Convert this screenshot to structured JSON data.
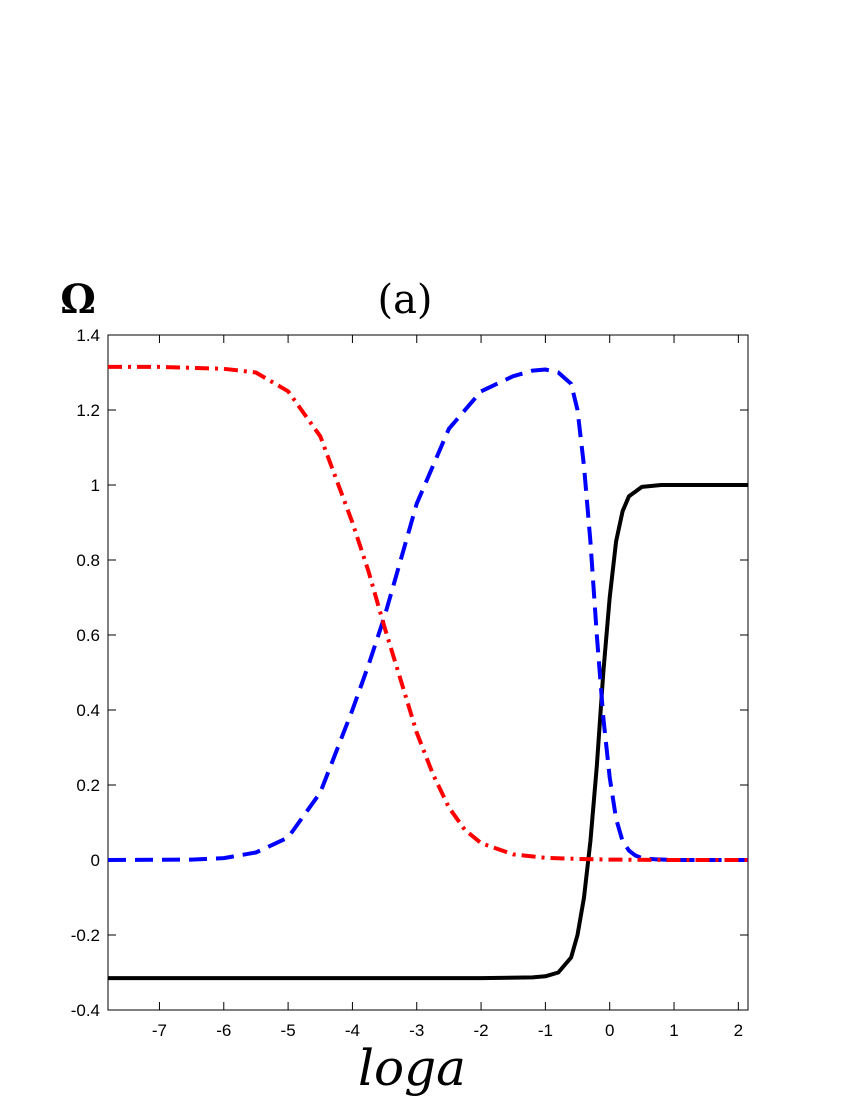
{
  "chart_data": {
    "type": "line",
    "title": "(a)",
    "xlabel": "loga",
    "ylabel": "Ω",
    "xlim": [
      -7.8,
      2.15
    ],
    "ylim": [
      -0.4,
      1.4
    ],
    "xticks": [
      -7,
      -6,
      -5,
      -4,
      -3,
      -2,
      -1,
      0,
      1,
      2
    ],
    "yticks": [
      -0.4,
      -0.2,
      0,
      0.2,
      0.4,
      0.6,
      0.8,
      1,
      1.2,
      1.4
    ],
    "grid": false,
    "legend": "none",
    "series": [
      {
        "style": "solid",
        "color": "#000000",
        "x": [
          -7.8,
          -6,
          -4,
          -2,
          -1.2,
          -1.0,
          -0.8,
          -0.6,
          -0.5,
          -0.4,
          -0.3,
          -0.2,
          -0.1,
          0.0,
          0.1,
          0.2,
          0.3,
          0.5,
          0.8,
          1.0,
          1.5,
          2.15
        ],
        "y": [
          -0.315,
          -0.315,
          -0.315,
          -0.315,
          -0.313,
          -0.31,
          -0.3,
          -0.26,
          -0.2,
          -0.1,
          0.05,
          0.25,
          0.5,
          0.7,
          0.85,
          0.93,
          0.97,
          0.995,
          1.0,
          1.0,
          1.0,
          1.0
        ]
      },
      {
        "style": "dashed",
        "color": "#0000ff",
        "x": [
          -7.8,
          -6.5,
          -6,
          -5.5,
          -5,
          -4.5,
          -4,
          -3.75,
          -3.5,
          -3.25,
          -3,
          -2.5,
          -2,
          -1.5,
          -1.2,
          -1.0,
          -0.8,
          -0.6,
          -0.5,
          -0.4,
          -0.3,
          -0.2,
          -0.1,
          0.0,
          0.1,
          0.2,
          0.3,
          0.4,
          0.5,
          0.7,
          1.0,
          2.15
        ],
        "y": [
          0.0,
          0.001,
          0.005,
          0.02,
          0.06,
          0.18,
          0.4,
          0.52,
          0.65,
          0.8,
          0.95,
          1.15,
          1.25,
          1.29,
          1.305,
          1.308,
          1.3,
          1.27,
          1.2,
          1.05,
          0.85,
          0.6,
          0.38,
          0.22,
          0.11,
          0.05,
          0.025,
          0.012,
          0.005,
          0.002,
          0.0,
          0.0
        ]
      },
      {
        "style": "dashdot",
        "color": "#ff0000",
        "x": [
          -7.8,
          -7,
          -6,
          -5.5,
          -5,
          -4.5,
          -4,
          -3.75,
          -3.5,
          -3.25,
          -3,
          -2.75,
          -2.5,
          -2.25,
          -2,
          -1.5,
          -1,
          -0.5,
          0,
          1,
          2.15
        ],
        "y": [
          1.315,
          1.315,
          1.31,
          1.3,
          1.25,
          1.13,
          0.9,
          0.77,
          0.62,
          0.48,
          0.34,
          0.23,
          0.14,
          0.08,
          0.045,
          0.015,
          0.006,
          0.003,
          0.001,
          0.0,
          0.0
        ]
      }
    ]
  }
}
